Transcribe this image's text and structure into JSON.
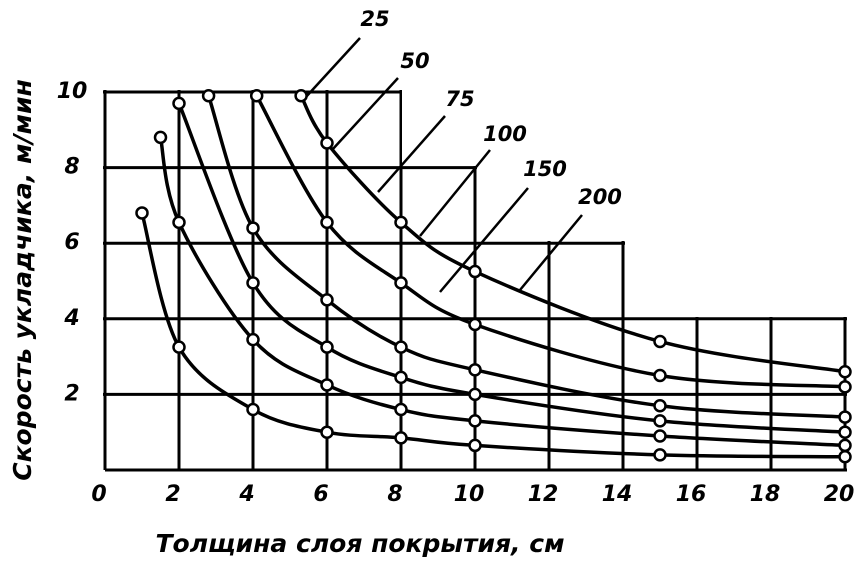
{
  "chart_data": {
    "type": "line",
    "xlabel": "Толщина слоя покрытия, см",
    "ylabel": "Скорость укладчика, м/мин",
    "xlim": [
      0,
      20
    ],
    "ylim": [
      0,
      10
    ],
    "xticks": [
      0,
      2,
      4,
      6,
      8,
      10,
      12,
      14,
      16,
      18,
      20
    ],
    "yticks": [
      2,
      4,
      6,
      8,
      10
    ],
    "grid": true,
    "series": [
      {
        "name": "25",
        "color": "#000000",
        "x": [
          1,
          2,
          4,
          6,
          8,
          10,
          15,
          20
        ],
        "values": [
          6.8,
          3.25,
          1.6,
          1.0,
          0.85,
          0.65,
          0.4,
          0.35
        ]
      },
      {
        "name": "50",
        "color": "#000000",
        "x": [
          1.5,
          2,
          4,
          6,
          8,
          10,
          15,
          20
        ],
        "values": [
          8.8,
          6.55,
          3.45,
          2.25,
          1.6,
          1.3,
          0.9,
          0.65
        ]
      },
      {
        "name": "75",
        "color": "#000000",
        "x": [
          2,
          4,
          6,
          8,
          10,
          15,
          20
        ],
        "values": [
          9.7,
          4.95,
          3.25,
          2.45,
          2.0,
          1.3,
          1.0
        ]
      },
      {
        "name": "100",
        "color": "#000000",
        "x": [
          2.8,
          4,
          6,
          8,
          10,
          15,
          20
        ],
        "values": [
          9.9,
          6.4,
          4.5,
          3.25,
          2.65,
          1.7,
          1.4
        ]
      },
      {
        "name": "150",
        "color": "#000000",
        "x": [
          4.1,
          6,
          8,
          10,
          15,
          20
        ],
        "values": [
          9.9,
          6.55,
          4.95,
          3.85,
          2.5,
          2.2
        ]
      },
      {
        "name": "200",
        "color": "#000000",
        "x": [
          5.3,
          6,
          8,
          10,
          15,
          20
        ],
        "values": [
          9.9,
          8.65,
          6.55,
          5.25,
          3.4,
          2.6
        ]
      }
    ]
  }
}
